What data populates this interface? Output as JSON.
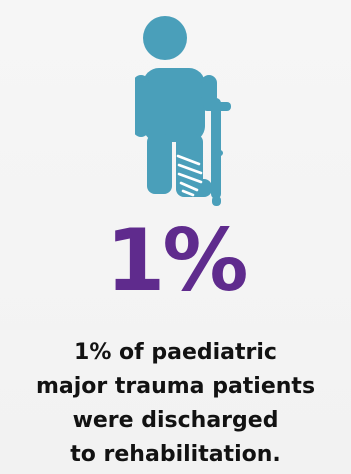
{
  "colors": {
    "icon": "#4a9fba",
    "cast_lines": "#ffffff",
    "stat": "#5f2b8d",
    "text": "#121212",
    "background": "#f5f5f5"
  },
  "icon": {
    "name": "child-with-cast-and-crutch-icon"
  },
  "stat": {
    "value": "1%"
  },
  "caption": {
    "lines": [
      "1% of paediatric",
      "major trauma patients",
      "were discharged",
      "to rehabilitation."
    ]
  }
}
